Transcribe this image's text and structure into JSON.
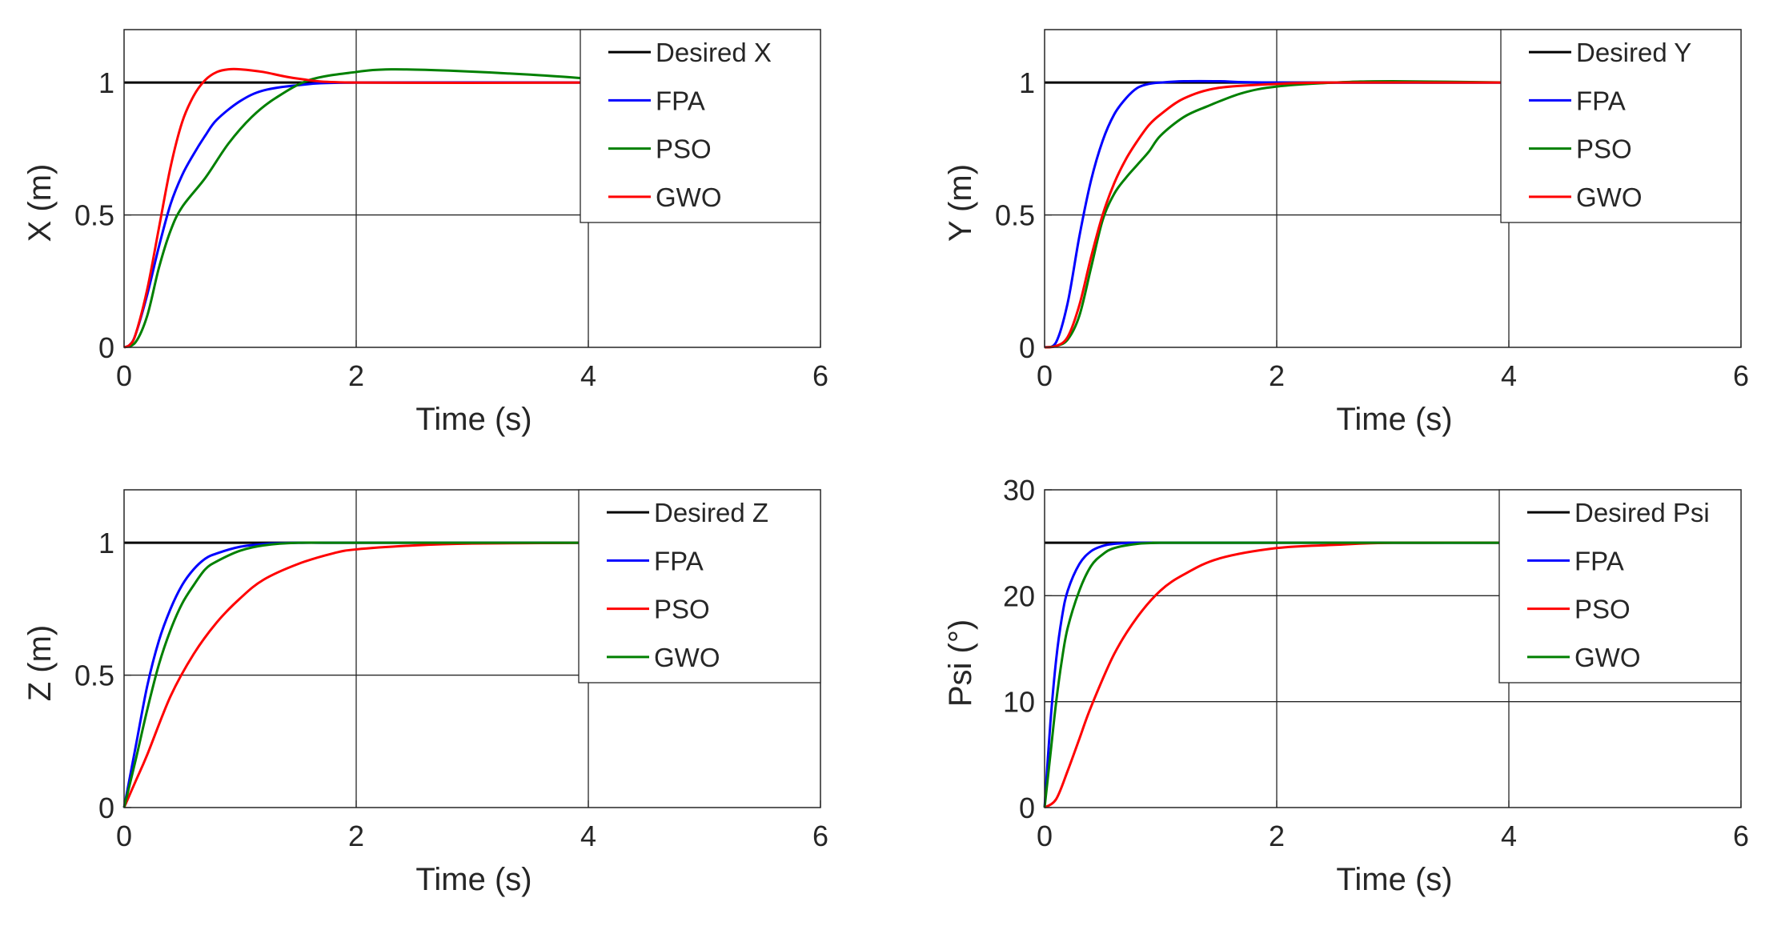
{
  "figure": {
    "description_free": true
  },
  "chart_data": [
    {
      "type": "line",
      "panel": "top-left",
      "title": "",
      "xlabel": "Time (s)",
      "ylabel": "X (m)",
      "xlim": [
        0,
        6
      ],
      "ylim": [
        0,
        1.2
      ],
      "xticks": [
        0,
        2,
        4,
        6
      ],
      "yticks": [
        0,
        0.5,
        1
      ],
      "xtick_labels": [
        "0",
        "2",
        "4",
        "6"
      ],
      "ytick_labels": [
        "0",
        "0.5",
        "1"
      ],
      "grid": true,
      "legend_position": "top-right",
      "series": [
        {
          "name": "Desired X",
          "color": "#000000",
          "x": [
            0,
            4
          ],
          "y": [
            1,
            1
          ]
        },
        {
          "name": "FPA",
          "color": "#0000ff",
          "x": [
            0,
            0.05,
            0.1,
            0.2,
            0.3,
            0.4,
            0.5,
            0.6,
            0.7,
            0.8,
            1.0,
            1.2,
            1.5,
            2.0,
            4.0
          ],
          "y": [
            0,
            0.01,
            0.05,
            0.2,
            0.38,
            0.54,
            0.65,
            0.73,
            0.8,
            0.86,
            0.93,
            0.97,
            0.99,
            1.0,
            1.0
          ]
        },
        {
          "name": "PSO",
          "color": "#008000",
          "x": [
            0,
            0.1,
            0.2,
            0.3,
            0.4,
            0.5,
            0.7,
            0.9,
            1.1,
            1.3,
            1.6,
            2.0,
            2.3,
            2.8,
            3.5,
            4.0
          ],
          "y": [
            0,
            0.02,
            0.12,
            0.3,
            0.44,
            0.53,
            0.64,
            0.77,
            0.87,
            0.94,
            1.01,
            1.04,
            1.05,
            1.045,
            1.03,
            1.015
          ]
        },
        {
          "name": "GWO",
          "color": "#ff0000",
          "x": [
            0,
            0.05,
            0.1,
            0.2,
            0.3,
            0.4,
            0.5,
            0.6,
            0.7,
            0.8,
            0.9,
            1.0,
            1.2,
            1.5,
            2.0,
            4.0
          ],
          "y": [
            0,
            0.01,
            0.05,
            0.22,
            0.45,
            0.68,
            0.85,
            0.95,
            1.01,
            1.04,
            1.05,
            1.05,
            1.04,
            1.015,
            1.0,
            1.0
          ]
        }
      ],
      "legend": [
        "Desired X",
        "FPA",
        "PSO",
        "GWO"
      ]
    },
    {
      "type": "line",
      "panel": "top-right",
      "title": "",
      "xlabel": "Time (s)",
      "ylabel": "Y (m)",
      "xlim": [
        0,
        6
      ],
      "ylim": [
        0,
        1.2
      ],
      "xticks": [
        0,
        2,
        4,
        6
      ],
      "yticks": [
        0,
        0.5,
        1
      ],
      "xtick_labels": [
        "0",
        "2",
        "4",
        "6"
      ],
      "ytick_labels": [
        "0",
        "0.5",
        "1"
      ],
      "grid": true,
      "legend_position": "top-right",
      "series": [
        {
          "name": "Desired Y",
          "color": "#000000",
          "x": [
            0,
            4
          ],
          "y": [
            1,
            1
          ]
        },
        {
          "name": "FPA",
          "color": "#0000ff",
          "x": [
            0,
            0.1,
            0.2,
            0.3,
            0.4,
            0.5,
            0.6,
            0.7,
            0.8,
            0.9,
            1.0,
            1.2,
            1.5,
            2.0,
            4.0
          ],
          "y": [
            0,
            0.02,
            0.17,
            0.42,
            0.63,
            0.78,
            0.88,
            0.94,
            0.98,
            0.995,
            1.0,
            1.005,
            1.005,
            1.0,
            1.0
          ]
        },
        {
          "name": "PSO",
          "color": "#008000",
          "x": [
            0,
            0.1,
            0.2,
            0.3,
            0.4,
            0.5,
            0.6,
            0.7,
            0.8,
            0.9,
            1.0,
            1.2,
            1.4,
            1.7,
            2.0,
            2.5,
            3.0,
            4.0
          ],
          "y": [
            0,
            0.005,
            0.03,
            0.12,
            0.3,
            0.48,
            0.58,
            0.64,
            0.69,
            0.74,
            0.8,
            0.87,
            0.91,
            0.96,
            0.985,
            1.0,
            1.005,
            1.0
          ]
        },
        {
          "name": "GWO",
          "color": "#ff0000",
          "x": [
            0,
            0.1,
            0.2,
            0.3,
            0.4,
            0.5,
            0.6,
            0.7,
            0.8,
            0.9,
            1.0,
            1.2,
            1.5,
            2.0,
            2.5,
            4.0
          ],
          "y": [
            0,
            0.005,
            0.04,
            0.16,
            0.34,
            0.5,
            0.62,
            0.71,
            0.78,
            0.84,
            0.88,
            0.94,
            0.98,
            0.995,
            1.0,
            1.0
          ]
        }
      ],
      "legend": [
        "Desired Y",
        "FPA",
        "PSO",
        "GWO"
      ]
    },
    {
      "type": "line",
      "panel": "bottom-left",
      "title": "",
      "xlabel": "Time (s)",
      "ylabel": "Z (m)",
      "xlim": [
        0,
        6
      ],
      "ylim": [
        0,
        1.2
      ],
      "xticks": [
        0,
        2,
        4,
        6
      ],
      "yticks": [
        0,
        0.5,
        1
      ],
      "xtick_labels": [
        "0",
        "2",
        "4",
        "6"
      ],
      "ytick_labels": [
        "0",
        "0.5",
        "1"
      ],
      "grid": true,
      "legend_position": "top-right",
      "series": [
        {
          "name": "Desired Z",
          "color": "#000000",
          "x": [
            0,
            4
          ],
          "y": [
            1,
            1
          ]
        },
        {
          "name": "FPA",
          "color": "#0000ff",
          "x": [
            0,
            0.1,
            0.2,
            0.3,
            0.4,
            0.5,
            0.6,
            0.7,
            0.8,
            1.0,
            1.2,
            1.5,
            2.0,
            4.0
          ],
          "y": [
            0,
            0.23,
            0.46,
            0.63,
            0.75,
            0.84,
            0.9,
            0.94,
            0.96,
            0.985,
            0.995,
            1.0,
            1.0,
            1.0
          ]
        },
        {
          "name": "PSO",
          "color": "#ff0000",
          "x": [
            0,
            0.1,
            0.2,
            0.4,
            0.6,
            0.8,
            1.0,
            1.2,
            1.5,
            1.8,
            2.0,
            2.5,
            3.0,
            4.0
          ],
          "y": [
            0,
            0.1,
            0.2,
            0.42,
            0.58,
            0.7,
            0.79,
            0.86,
            0.92,
            0.96,
            0.975,
            0.99,
            0.997,
            1.0
          ]
        },
        {
          "name": "GWO",
          "color": "#008000",
          "x": [
            0,
            0.1,
            0.2,
            0.3,
            0.4,
            0.5,
            0.6,
            0.7,
            0.8,
            1.0,
            1.2,
            1.5,
            2.0,
            4.0
          ],
          "y": [
            0,
            0.18,
            0.37,
            0.54,
            0.67,
            0.77,
            0.84,
            0.9,
            0.93,
            0.97,
            0.99,
            1.0,
            1.0,
            1.0
          ]
        }
      ],
      "legend": [
        "Desired Z",
        "FPA",
        "PSO",
        "GWO"
      ]
    },
    {
      "type": "line",
      "panel": "bottom-right",
      "title": "",
      "xlabel": "Time (s)",
      "ylabel": "Psi (°)",
      "xlim": [
        0,
        6
      ],
      "ylim": [
        0,
        30
      ],
      "xticks": [
        0,
        2,
        4,
        6
      ],
      "yticks": [
        0,
        10,
        20,
        30
      ],
      "xtick_labels": [
        "0",
        "2",
        "4",
        "6"
      ],
      "ytick_labels": [
        "0",
        "10",
        "20",
        "30"
      ],
      "grid": true,
      "legend_position": "top-right",
      "series": [
        {
          "name": "Desired Psi",
          "color": "#000000",
          "x": [
            0,
            4
          ],
          "y": [
            25,
            25
          ]
        },
        {
          "name": "FPA",
          "color": "#0000ff",
          "x": [
            0,
            0.05,
            0.1,
            0.15,
            0.2,
            0.3,
            0.4,
            0.5,
            0.6,
            0.8,
            1.0,
            4.0
          ],
          "y": [
            0,
            8,
            14,
            18,
            20.5,
            23,
            24.2,
            24.7,
            24.9,
            25,
            25,
            25
          ]
        },
        {
          "name": "PSO",
          "color": "#ff0000",
          "x": [
            0,
            0.1,
            0.2,
            0.3,
            0.4,
            0.6,
            0.8,
            1.0,
            1.2,
            1.5,
            2.0,
            2.5,
            3.0,
            4.0
          ],
          "y": [
            0,
            0.8,
            3.5,
            6.5,
            9.5,
            14.5,
            18,
            20.5,
            22,
            23.5,
            24.5,
            24.8,
            25,
            25
          ]
        },
        {
          "name": "GWO",
          "color": "#008000",
          "x": [
            0,
            0.05,
            0.1,
            0.15,
            0.2,
            0.3,
            0.4,
            0.5,
            0.6,
            0.8,
            1.0,
            1.2,
            4.0
          ],
          "y": [
            0,
            5,
            10,
            14,
            17,
            20.5,
            22.8,
            23.9,
            24.5,
            24.9,
            25,
            25,
            25
          ]
        }
      ],
      "legend": [
        "Desired Psi",
        "FPA",
        "PSO",
        "GWO"
      ]
    }
  ]
}
